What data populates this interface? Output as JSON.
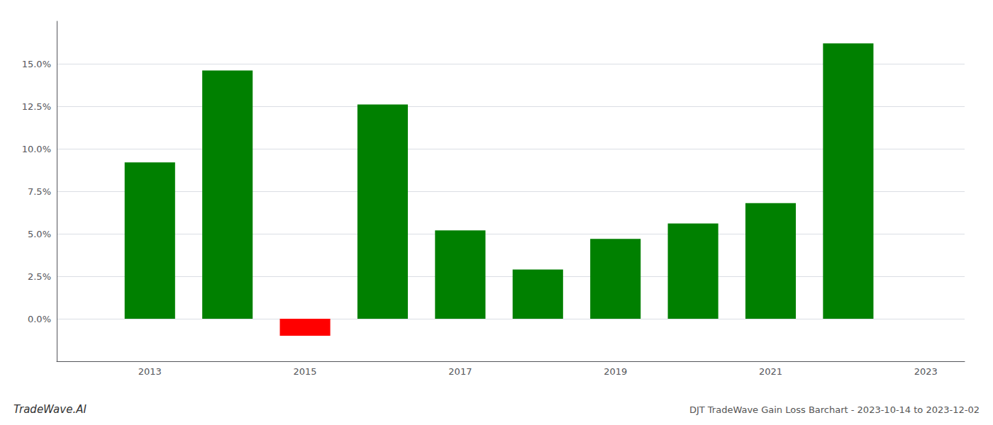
{
  "chart_data": {
    "type": "bar",
    "title": "DJT TradeWave Gain Loss Barchart - 2023-10-14 to 2023-12-02",
    "annotations": [
      "TradeWave.AI"
    ],
    "x": [
      2013,
      2014,
      2015,
      2016,
      2017,
      2018,
      2019,
      2020,
      2021,
      2022
    ],
    "values": [
      0.092,
      0.146,
      -0.01,
      0.126,
      0.052,
      0.029,
      0.047,
      0.056,
      0.068,
      0.162
    ],
    "colors": [
      "#008000",
      "#008000",
      "#ff0000",
      "#008000",
      "#008000",
      "#008000",
      "#008000",
      "#008000",
      "#008000",
      "#008000"
    ],
    "xlim": [
      2011.8,
      2023.5
    ],
    "xticks": [
      2013,
      2015,
      2017,
      2019,
      2021,
      2023
    ],
    "ylim": [
      -0.025,
      0.175
    ],
    "yticks": [
      {
        "value": 0.0,
        "label": "0.0%"
      },
      {
        "value": 0.025,
        "label": "2.5%"
      },
      {
        "value": 0.05,
        "label": "5.0%"
      },
      {
        "value": 0.075,
        "label": "7.5%"
      },
      {
        "value": 0.1,
        "label": "10.0%"
      },
      {
        "value": 0.125,
        "label": "12.5%"
      },
      {
        "value": 0.15,
        "label": "15.0%"
      }
    ],
    "grid": true
  }
}
